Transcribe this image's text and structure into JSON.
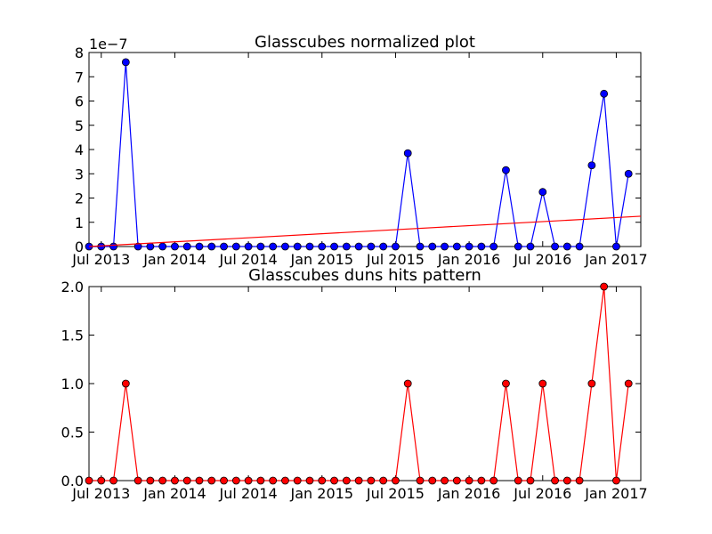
{
  "chart_data": [
    {
      "type": "line",
      "title": "Glasscubes normalized plot",
      "offset_text": "1e−7",
      "xlabel": "",
      "ylabel": "",
      "x_start_month": "2013-06",
      "x_end_month": "2017-03",
      "x_ticks": [
        "Jul 2013",
        "Jan 2014",
        "Jul 2014",
        "Jan 2015",
        "Jul 2015",
        "Jan 2016",
        "Jul 2016",
        "Jan 2017"
      ],
      "y_ticks": [
        "0",
        "1",
        "2",
        "3",
        "4",
        "5",
        "6",
        "7",
        "8"
      ],
      "ylim": [
        0,
        8e-07
      ],
      "series": [
        {
          "color": "#0000ff",
          "marker": "circle",
          "values": [
            0,
            0,
            0,
            7.6e-07,
            0,
            0,
            0,
            0,
            0,
            0,
            0,
            0,
            0,
            0,
            0,
            0,
            0,
            0,
            0,
            0,
            0,
            0,
            0,
            0,
            0,
            0,
            3.85e-07,
            0,
            0,
            0,
            0,
            0,
            0,
            0,
            3.15e-07,
            0,
            0,
            2.25e-07,
            0,
            0,
            0,
            3.35e-07,
            6.3e-07,
            0,
            3e-07
          ]
        },
        {
          "color": "#ff0000",
          "marker": "none",
          "type": "trend-line",
          "values": [
            0,
            1.25e-07
          ]
        }
      ]
    },
    {
      "type": "line",
      "title": "Glasscubes duns hits pattern",
      "xlabel": "",
      "ylabel": "",
      "x_start_month": "2013-06",
      "x_end_month": "2017-03",
      "x_ticks": [
        "Jul 2013",
        "Jan 2014",
        "Jul 2014",
        "Jan 2015",
        "Jul 2015",
        "Jan 2016",
        "Jul 2016",
        "Jan 2017"
      ],
      "y_ticks": [
        "0.0",
        "0.5",
        "1.0",
        "1.5",
        "2.0"
      ],
      "ylim": [
        0,
        2
      ],
      "series": [
        {
          "color": "#ff0000",
          "marker": "circle",
          "values": [
            0,
            0,
            0,
            1,
            0,
            0,
            0,
            0,
            0,
            0,
            0,
            0,
            0,
            0,
            0,
            0,
            0,
            0,
            0,
            0,
            0,
            0,
            0,
            0,
            0,
            0,
            1,
            0,
            0,
            0,
            0,
            0,
            0,
            0,
            1,
            0,
            0,
            1,
            0,
            0,
            0,
            1,
            2,
            0,
            1
          ]
        }
      ]
    }
  ]
}
